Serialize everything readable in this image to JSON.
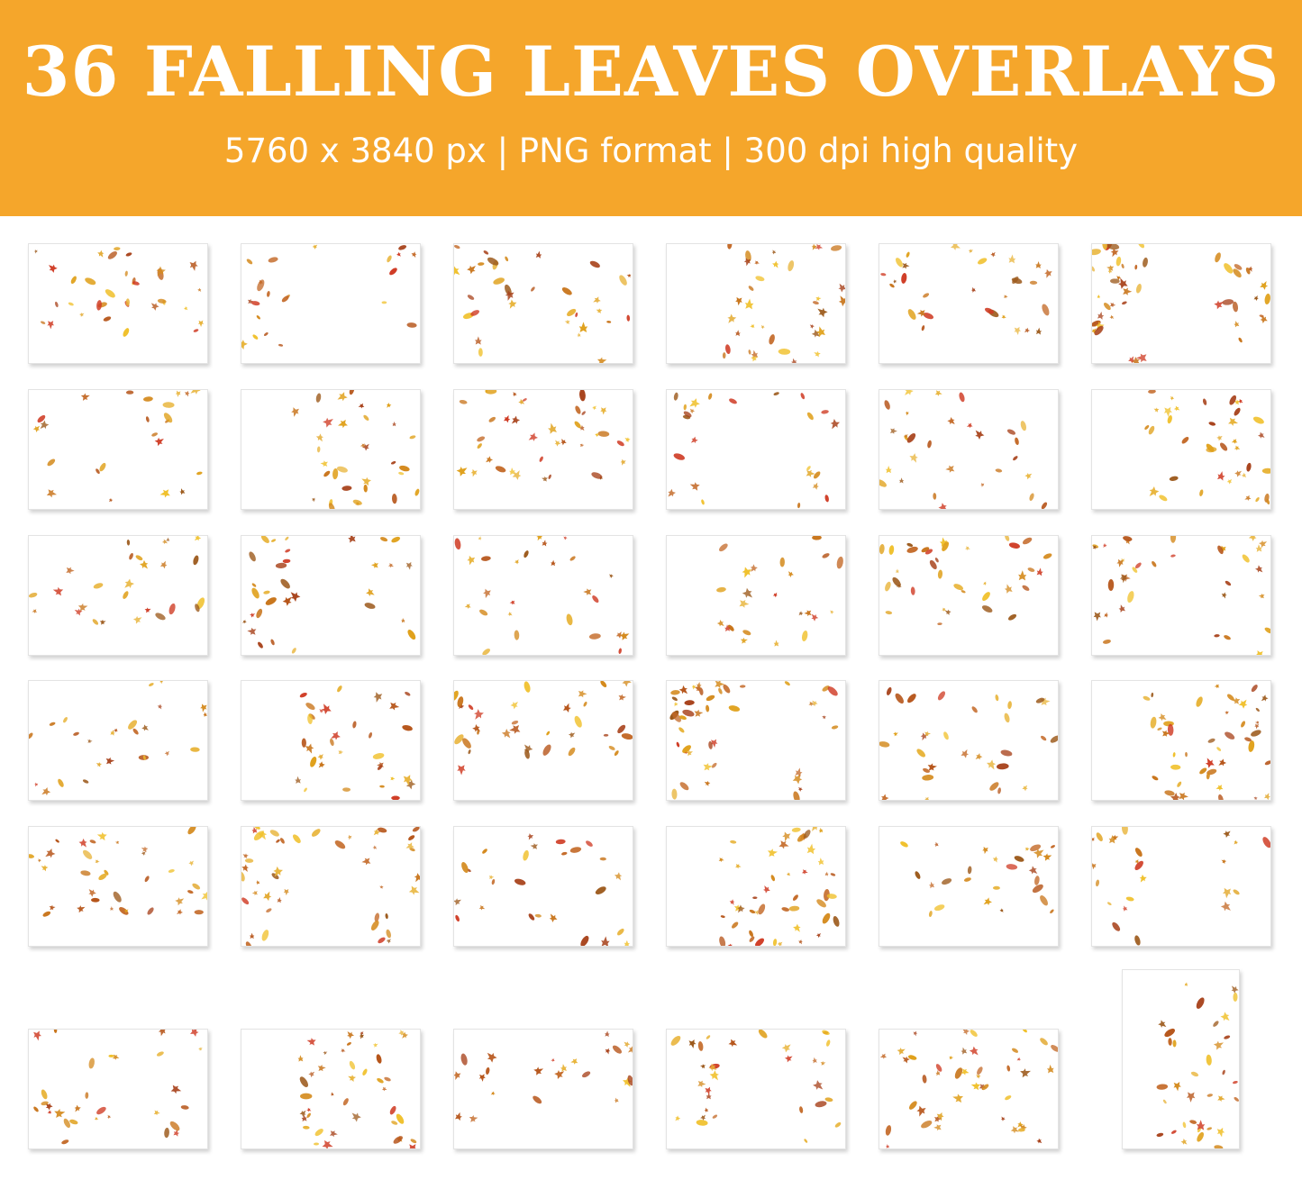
{
  "banner": {
    "title": "36 FALLING LEAVES OVERLAYS",
    "subtitle": "5760 x 3840 px | PNG format | 300 dpi high quality",
    "background_color": "#f5a62b"
  },
  "leaf_palette": [
    "#e0a11c",
    "#c8741a",
    "#b6551a",
    "#d48a1d",
    "#f0c02a",
    "#a8431c",
    "#c46b2a",
    "#e8b43a",
    "#9c5a1c",
    "#cf3b24"
  ],
  "overlay_count": 36,
  "overlay_icon": "falling-leaves-thumbnail"
}
